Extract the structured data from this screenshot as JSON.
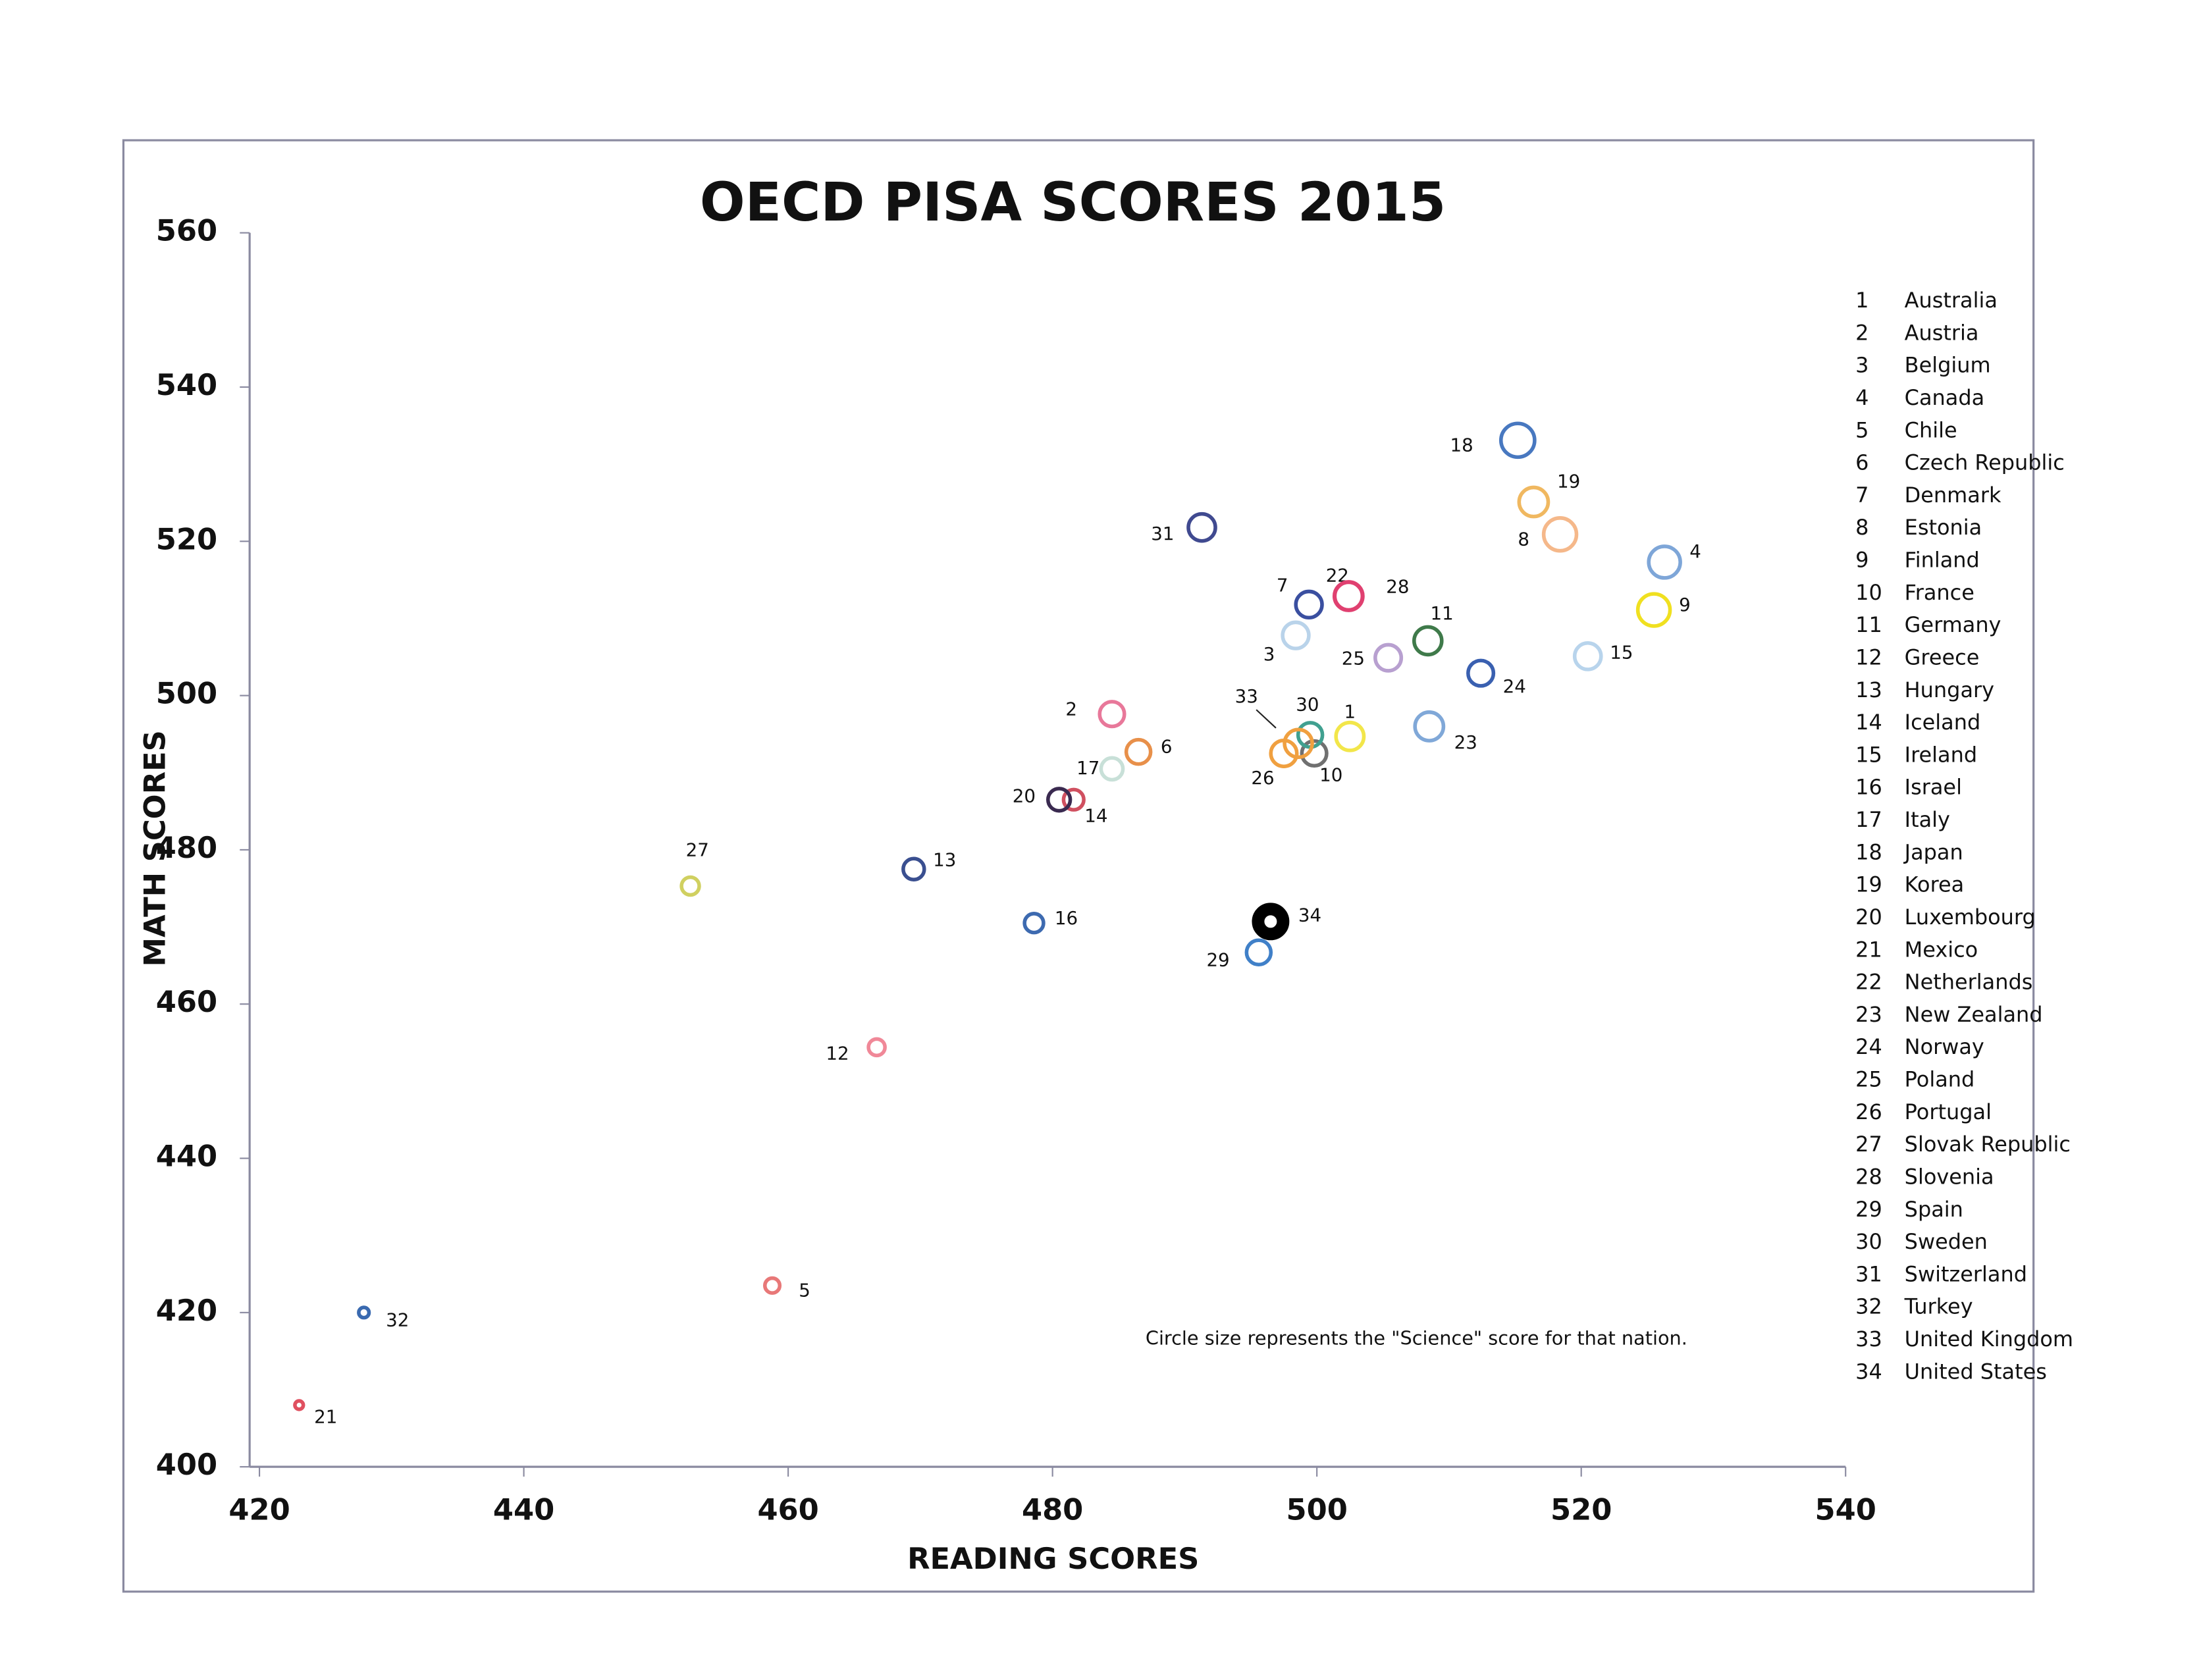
{
  "chart_data": {
    "type": "scatter",
    "title": "OECD PISA SCORES 2015",
    "x_label": "READING SCORES",
    "y_label": "MATH SCORES",
    "annotation": "Circle size represents the \"Science\" score for that nation.",
    "xlim": [
      420,
      540
    ],
    "ylim": [
      400,
      560
    ],
    "xticks": [
      420,
      440,
      460,
      480,
      500,
      520,
      540
    ],
    "yticks": [
      400,
      420,
      440,
      460,
      480,
      500,
      520,
      540,
      560
    ],
    "labels": [
      "1",
      "2",
      "3",
      "4",
      "5",
      "6",
      "7",
      "8",
      "9",
      "10",
      "11",
      "12",
      "13",
      "14",
      "15",
      "16",
      "17",
      "18",
      "19",
      "20",
      "21",
      "22",
      "23",
      "24",
      "25",
      "26",
      "27",
      "28",
      "29",
      "30",
      "31",
      "32",
      "33",
      "34"
    ],
    "names": [
      "Australia",
      "Austria",
      "Belgium",
      "Canada",
      "Chile",
      "Czech Republic",
      "Denmark",
      "Estonia",
      "Finland",
      "France",
      "Germany",
      "Greece",
      "Hungary",
      "Iceland",
      "Ireland",
      "Israel",
      "Italy",
      "Japan",
      "Korea",
      "Luxembourg",
      "Mexico",
      "Netherlands",
      "New Zealand",
      "Norway",
      "Poland",
      "Portugal",
      "Slovak Republic",
      "Slovenia",
      "Spain",
      "Sweden",
      "Switzerland",
      "Turkey",
      "United Kingdom",
      "United States"
    ],
    "x": [
      502.5,
      484.5,
      498.4,
      526.3,
      458.8,
      486.5,
      499.4,
      518.4,
      525.5,
      499.8,
      508.4,
      466.7,
      469.5,
      481.6,
      520.5,
      478.6,
      484.5,
      515.2,
      516.4,
      480.5,
      423,
      502.4,
      508.5,
      512.4,
      505.4,
      497.5,
      452.6,
      502.4,
      495.6,
      499.5,
      491.3,
      427.9,
      498.6,
      496.5
    ],
    "values": [
      494.7,
      497.6,
      507.8,
      517.3,
      423.5,
      492.7,
      511.8,
      520.9,
      511.1,
      492.5,
      507.1,
      454.4,
      477.5,
      486.5,
      505.1,
      470.5,
      490.5,
      533.1,
      525.1,
      486.5,
      408,
      512.9,
      496,
      502.9,
      504.9,
      492.5,
      475.3,
      512.9,
      466.7,
      494.9,
      521.8,
      420,
      493.8,
      470.7
    ],
    "sizes": [
      510,
      495,
      502,
      528,
      447,
      493,
      502,
      534,
      531,
      495,
      509,
      455,
      477,
      473,
      503,
      467,
      481,
      538,
      516,
      483,
      416,
      509,
      513,
      498,
      501,
      501,
      461,
      513,
      493,
      493,
      506,
      425,
      509,
      496
    ],
    "colors": [
      "#f2e64a",
      "#e8789a",
      "#b9d3ea",
      "#7ea6d8",
      "#e87878",
      "#e8904a",
      "#3a4fa0",
      "#f5b88a",
      "#f0e020",
      "#707070",
      "#3f7a4a",
      "#f08898",
      "#3a4f90",
      "#d05060",
      "#b8d4ec",
      "#3d6ab0",
      "#c8e0d8",
      "#4878c0",
      "#f0b860",
      "#3a2a50",
      "#e05060",
      "#e04070",
      "#80a8d8",
      "#3a60b0",
      "#b8a0d0",
      "#f0a040",
      "#d0d060",
      "#e04070",
      "#4080c8",
      "#40a090",
      "#404a90",
      "#3a6ab0",
      "#f0a040",
      "#000000"
    ]
  }
}
